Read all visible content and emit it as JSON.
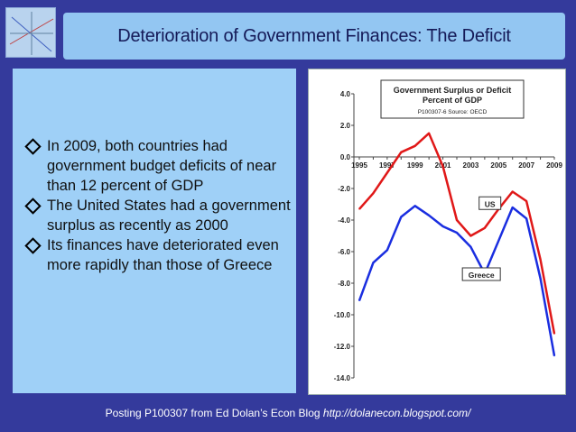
{
  "slide": {
    "title": "Deterioration of Government Finances: The Deficit",
    "bullets": [
      "In 2009, both countries had government budget deficits of near than 12 percent of GDP",
      "The United States had a government surplus as recently as 2000",
      "Its finances have deteriorated even more rapidly than those of Greece"
    ],
    "footer": {
      "text": "Posting P100307 from Ed Dolan’s Econ Blog ",
      "url": "http://dolanecon.blogspot.com/"
    }
  },
  "chart_data": {
    "type": "line",
    "title": "Government Surplus or Deficit",
    "subtitle": "Percent of GDP",
    "source_note": "P100307-6 Source: OECD",
    "x": [
      1995,
      1996,
      1997,
      1998,
      1999,
      2000,
      2001,
      2002,
      2003,
      2004,
      2005,
      2006,
      2007,
      2008,
      2009
    ],
    "x_tick_labels": [
      "1995",
      "1997",
      "1999",
      "2001",
      "2003",
      "2005",
      "2007",
      "2009"
    ],
    "y_tick_labels": [
      "4.0",
      "2.0",
      "0.0",
      "-2.0",
      "-4.0",
      "-6.0",
      "-8.0",
      "-10.0",
      "-12.0",
      "-14.0"
    ],
    "ylim": [
      -14,
      4
    ],
    "series": [
      {
        "name": "US",
        "color": "#e01818",
        "values": [
          -3.3,
          -2.3,
          -1.0,
          0.3,
          0.7,
          1.5,
          -0.6,
          -4.0,
          -5.0,
          -4.5,
          -3.3,
          -2.2,
          -2.8,
          -6.5,
          -11.2
        ]
      },
      {
        "name": "Greece",
        "color": "#1a2ee0",
        "values": [
          -9.1,
          -6.7,
          -5.9,
          -3.8,
          -3.1,
          -3.7,
          -4.4,
          -4.8,
          -5.7,
          -7.4,
          -5.3,
          -3.2,
          -3.9,
          -7.7,
          -12.6
        ]
      }
    ],
    "grid": false,
    "legend": "inline labels"
  }
}
